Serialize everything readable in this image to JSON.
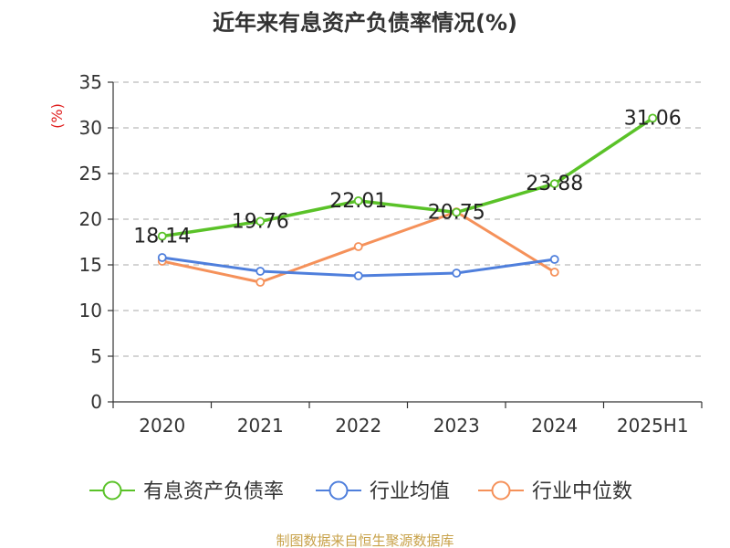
{
  "chart_data": {
    "type": "line",
    "title": "近年来有息资产负债率情况(%)",
    "ylabel": "(%)",
    "xlabel": "",
    "categories": [
      "2020",
      "2021",
      "2022",
      "2023",
      "2024",
      "2025H1"
    ],
    "ylim": [
      0,
      35
    ],
    "yticks": [
      0,
      5,
      10,
      15,
      20,
      25,
      30,
      35
    ],
    "grid": true,
    "legend_position": "bottom",
    "series": [
      {
        "name": "有息资产负债率",
        "color": "#5ac228",
        "values": [
          18.14,
          19.76,
          22.01,
          20.75,
          23.88,
          31.06
        ],
        "labels": [
          "18.14",
          "19.76",
          "22.01",
          "20.75",
          "23.88",
          "31.06"
        ]
      },
      {
        "name": "行业均值",
        "color": "#4f7fdc",
        "values": [
          15.8,
          14.3,
          13.8,
          14.1,
          15.6,
          null
        ]
      },
      {
        "name": "行业中位数",
        "color": "#f5915a",
        "values": [
          15.4,
          13.1,
          17.0,
          20.8,
          14.2,
          null
        ]
      }
    ]
  },
  "source": "制图数据来自恒生聚源数据库",
  "colors": {
    "ylabel": "#e02020",
    "source": "#c8a24a",
    "axis": "#333333",
    "grid": "#bbbbbb"
  }
}
